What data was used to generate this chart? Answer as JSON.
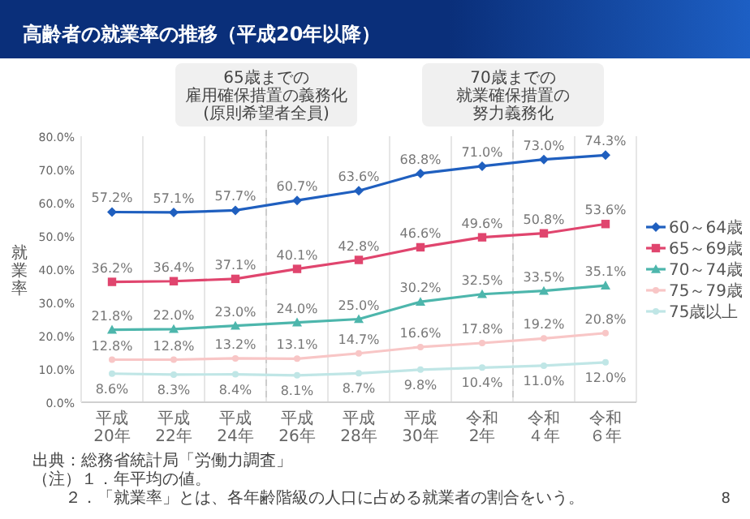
{
  "chart_data": {
    "type": "line",
    "title": "高齢者の就業率の推移（平成20年以降）",
    "ylabel": "就業率",
    "categories": [
      "平成20年",
      "平成22年",
      "平成24年",
      "平成26年",
      "平成28年",
      "平成30年",
      "令和2年",
      "令和４年",
      "令和６年"
    ],
    "ylim": [
      0,
      80
    ],
    "yticks": [
      {
        "value": 0,
        "label": "0.0%"
      },
      {
        "value": 10,
        "label": "10.0%"
      },
      {
        "value": 20,
        "label": "20.0%"
      },
      {
        "value": 30,
        "label": "30.0%"
      },
      {
        "value": 40,
        "label": "40.0%"
      },
      {
        "value": 50,
        "label": "50.0%"
      },
      {
        "value": 60,
        "label": "60.0%"
      },
      {
        "value": 70,
        "label": "70.0%"
      },
      {
        "value": 80,
        "label": "80.0%"
      }
    ],
    "series": [
      {
        "name": "60～64歳",
        "color": "#1f5fbf",
        "marker": "diamond",
        "values": [
          57.2,
          57.1,
          57.7,
          60.7,
          63.6,
          68.8,
          71.0,
          73.0,
          74.3
        ],
        "value_labels": [
          "57.2%",
          "57.1%",
          "57.7%",
          "60.7%",
          "63.6%",
          "68.8%",
          "71.0%",
          "73.0%",
          "74.3%"
        ]
      },
      {
        "name": "65～69歳",
        "color": "#e0456e",
        "marker": "square",
        "values": [
          36.2,
          36.4,
          37.1,
          40.1,
          42.8,
          46.6,
          49.6,
          50.8,
          53.6
        ],
        "value_labels": [
          "36.2%",
          "36.4%",
          "37.1%",
          "40.1%",
          "42.8%",
          "46.6%",
          "49.6%",
          "50.8%",
          "53.6%"
        ]
      },
      {
        "name": "70～74歳",
        "color": "#4db6ac",
        "marker": "triangle",
        "values": [
          21.8,
          22.0,
          23.0,
          24.0,
          25.0,
          30.2,
          32.5,
          33.5,
          35.1
        ],
        "value_labels": [
          "21.8%",
          "22.0%",
          "23.0%",
          "24.0%",
          "25.0%",
          "30.2%",
          "32.5%",
          "33.5%",
          "35.1%"
        ]
      },
      {
        "name": "75～79歳",
        "color": "#f8c6c6",
        "marker": "circle",
        "values": [
          12.8,
          12.8,
          13.2,
          13.1,
          14.7,
          16.6,
          17.8,
          19.2,
          20.8
        ],
        "value_labels": [
          "12.8%",
          "12.8%",
          "13.2%",
          "13.1%",
          "14.7%",
          "16.6%",
          "17.8%",
          "19.2%",
          "20.8%"
        ]
      },
      {
        "name": "75歳以上",
        "color": "#c0e6e6",
        "marker": "circle",
        "values": [
          8.6,
          8.3,
          8.4,
          8.1,
          8.7,
          9.8,
          10.4,
          11.0,
          12.0
        ],
        "value_labels": [
          "8.6%",
          "8.3%",
          "8.4%",
          "8.1%",
          "8.7%",
          "9.8%",
          "10.4%",
          "11.0%",
          "12.0%"
        ]
      }
    ],
    "grid": "x",
    "legend": "right",
    "annotations": [
      "65歳までの雇用確保措置の義務化(原則希望者全員)",
      "70歳までの就業確保措置の努力義務化",
      "出典：総務省統計局「労働力調査」",
      "（注）１．年平均の値。",
      "２．「就業率」とは、各年齢階級の人口に占める就業者の割合をいう。",
      "8"
    ]
  }
}
